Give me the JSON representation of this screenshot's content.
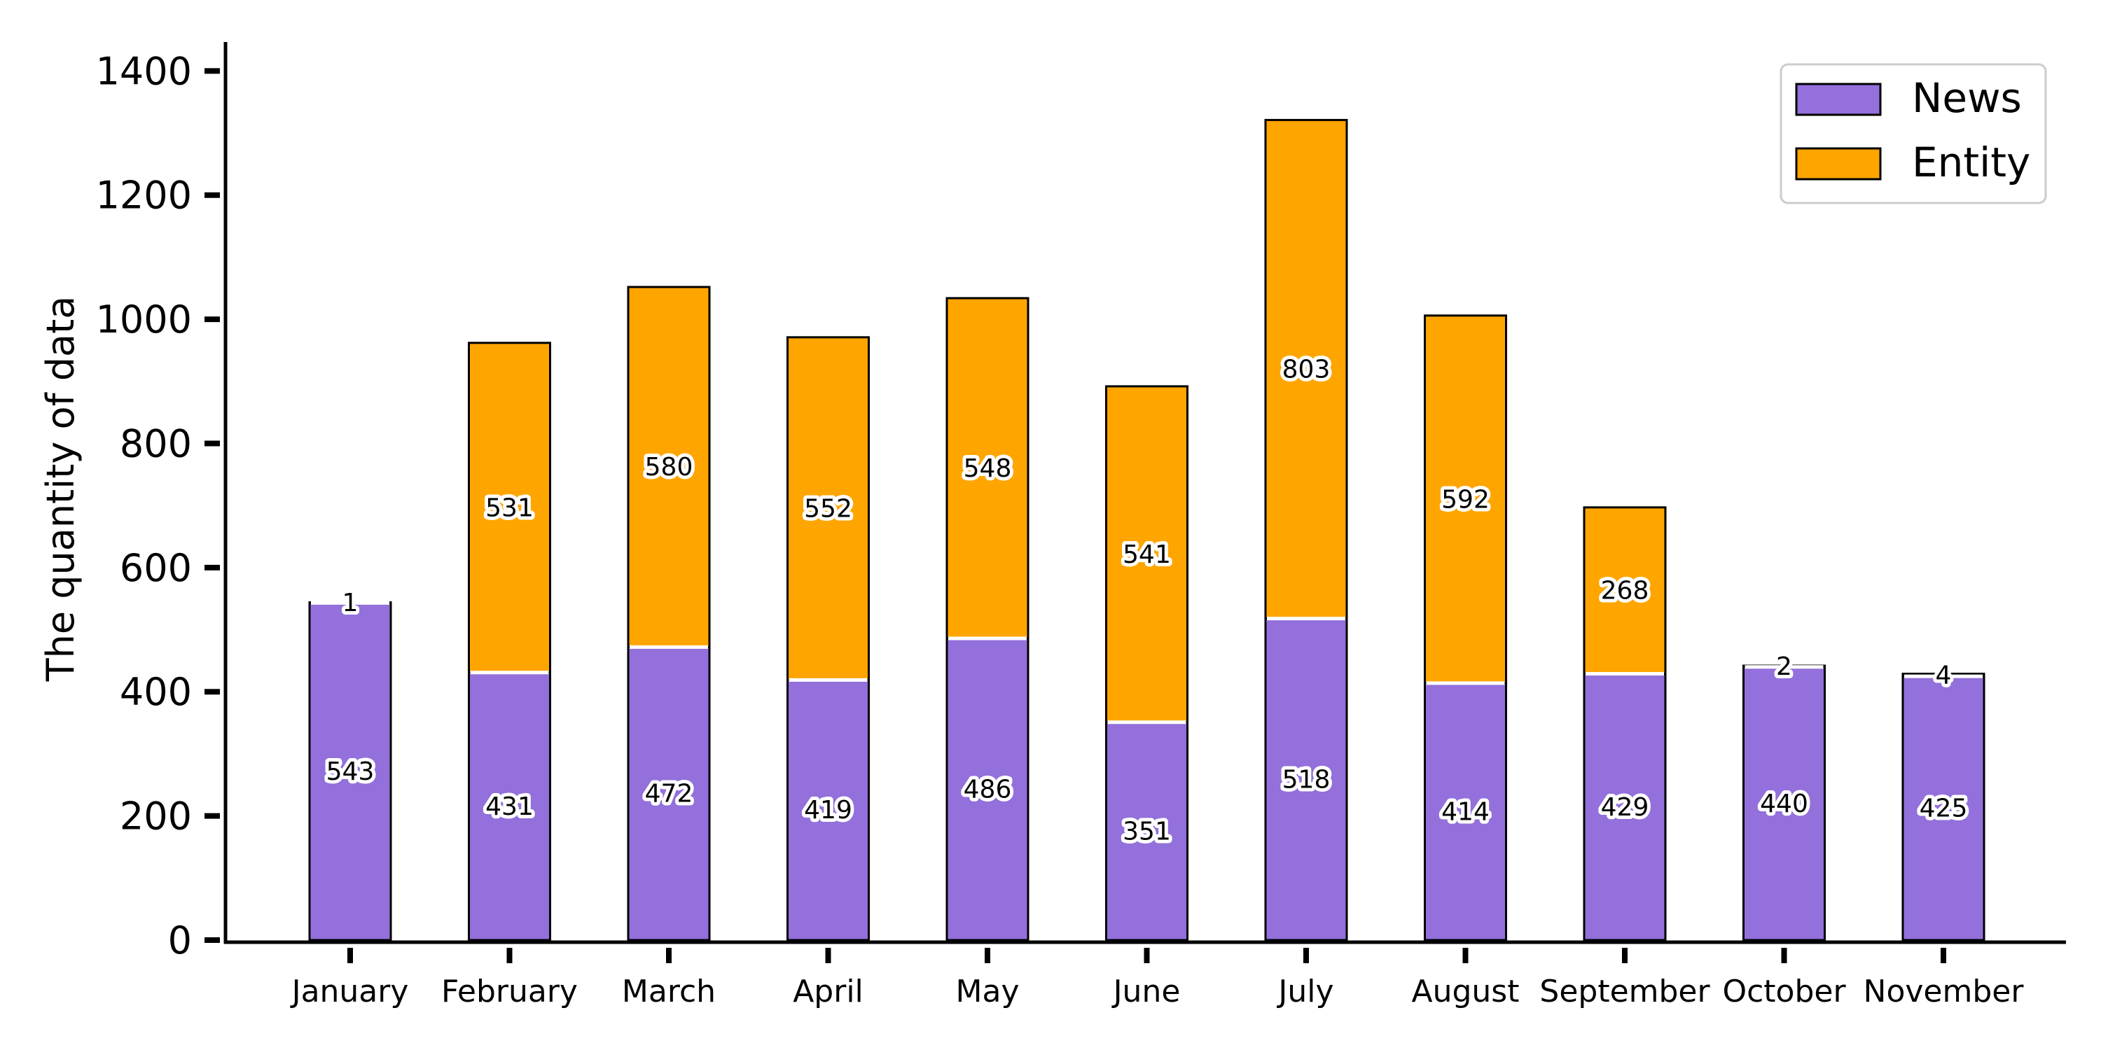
{
  "chart_data": {
    "type": "bar",
    "stacked": true,
    "title": "",
    "xlabel": "",
    "ylabel": "The quantity of data",
    "ylim": [
      0,
      1450
    ],
    "yticks": [
      0,
      200,
      400,
      600,
      800,
      1000,
      1200,
      1400
    ],
    "categories": [
      "January",
      "February",
      "March",
      "April",
      "May",
      "June",
      "July",
      "August",
      "September",
      "October",
      "November"
    ],
    "series": [
      {
        "name": "News",
        "color": "#9370DB",
        "values": [
          543,
          431,
          472,
          419,
          486,
          351,
          518,
          414,
          429,
          440,
          425
        ]
      },
      {
        "name": "Entity",
        "color": "#FFA500",
        "values": [
          1,
          531,
          580,
          552,
          548,
          541,
          803,
          592,
          268,
          2,
          4
        ]
      }
    ],
    "legend": {
      "position": "top-right"
    },
    "grid": false
  }
}
